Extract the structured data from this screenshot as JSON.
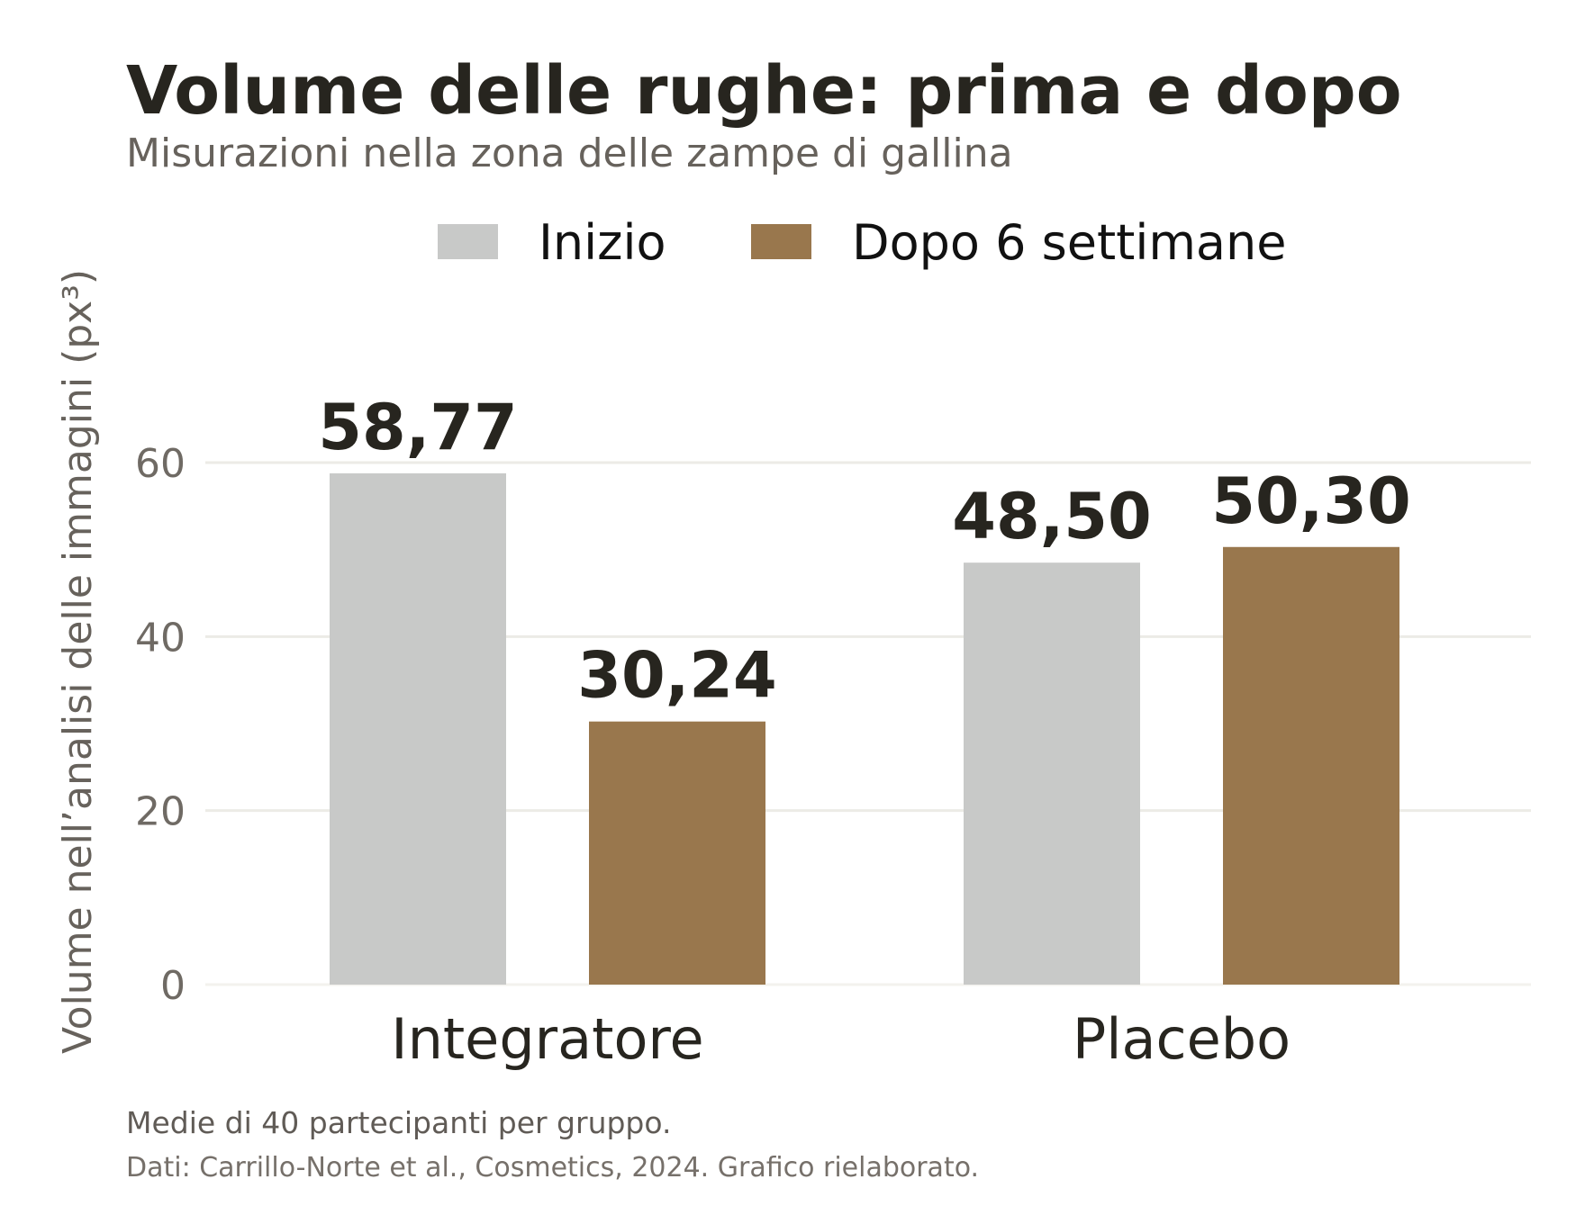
{
  "header": {
    "title": "Volume delle rughe: prima e dopo",
    "subtitle": "Misurazioni nella zona delle zampe di gallina"
  },
  "footer": {
    "note": "Medie di 40 partecipanti per gruppo.",
    "source": "Dati: Carrillo-Norte et al., Cosmetics, 2024. Grafico rielaborato."
  },
  "colors": {
    "series_start": "#c8c9c8",
    "series_after": "#99774d",
    "text_dark": "#27251f",
    "text_muted": "#6f6a64",
    "grid": "#ecebe6"
  },
  "chart_data": {
    "type": "bar",
    "title": "Volume delle rughe: prima e dopo",
    "subtitle": "Misurazioni nella zona delle zampe di gallina",
    "xlabel": "",
    "ylabel": "Volume nell’analisi delle immagini (px³)",
    "categories": [
      "Integratore",
      "Placebo"
    ],
    "series": [
      {
        "name": "Inizio",
        "values": [
          58.77,
          48.5
        ],
        "labels": [
          "58,77",
          "48,50"
        ]
      },
      {
        "name": "Dopo 6 settimane",
        "values": [
          30.24,
          50.3
        ],
        "labels": [
          "30,24",
          "50,30"
        ]
      }
    ],
    "ylim": [
      0,
      60
    ],
    "yticks": [
      0,
      20,
      40,
      60
    ],
    "ytick_labels": [
      "0",
      "20",
      "40",
      "60"
    ],
    "grid": true,
    "legend_position": "top-center"
  }
}
